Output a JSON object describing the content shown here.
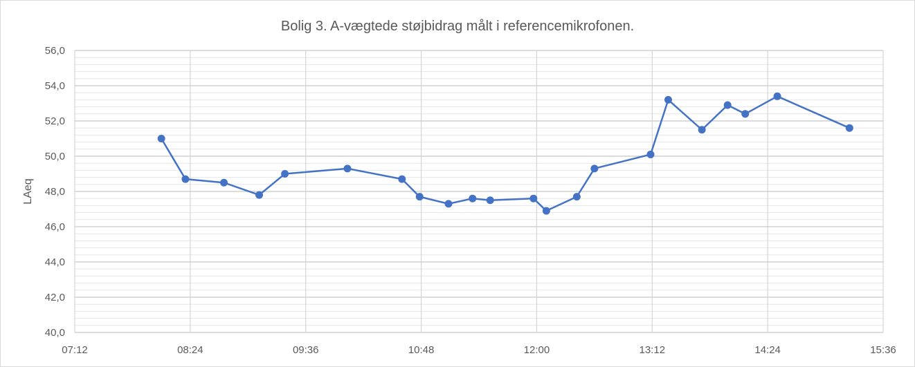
{
  "chart_data": {
    "type": "line",
    "title": "Bolig 3. A-vægtede støjbidrag målt i referencemikrofonen.",
    "xlabel": "",
    "ylabel": "LAeq",
    "xlim": [
      "07:12",
      "15:36"
    ],
    "ylim": [
      40.0,
      56.0
    ],
    "x_ticks": [
      "07:12",
      "08:24",
      "09:36",
      "10:48",
      "12:00",
      "13:12",
      "14:24",
      "15:36"
    ],
    "y_ticks": [
      "40,0",
      "42,0",
      "44,0",
      "46,0",
      "48,0",
      "50,0",
      "52,0",
      "54,0",
      "56,0"
    ],
    "grid": true,
    "legend": "none",
    "line_color": "#4472c4",
    "series": [
      {
        "x": [
          "08:06",
          "08:21",
          "08:45",
          "09:07",
          "09:23",
          "10:02",
          "10:36",
          "10:47",
          "11:05",
          "11:20",
          "11:31",
          "11:58",
          "12:06",
          "12:25",
          "12:36",
          "13:11",
          "13:22",
          "13:43",
          "13:59",
          "14:10",
          "14:30",
          "15:15"
        ],
        "values": [
          51.0,
          48.7,
          48.5,
          47.8,
          49.0,
          49.3,
          48.7,
          47.7,
          47.3,
          47.6,
          47.5,
          47.6,
          46.9,
          47.7,
          49.3,
          50.1,
          53.2,
          51.5,
          52.9,
          52.4,
          53.4,
          51.6
        ]
      }
    ]
  }
}
